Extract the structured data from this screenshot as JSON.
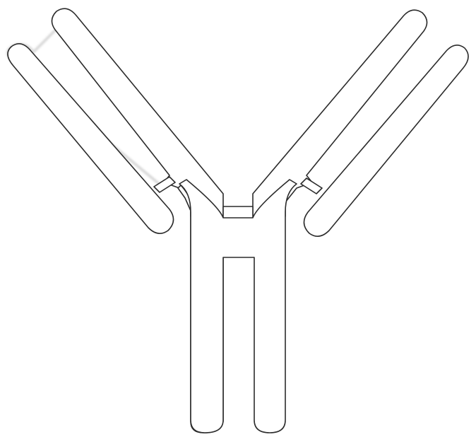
{
  "diagram": {
    "subject_icon": "antibody-icon",
    "stroke_color": "#2b2b2b",
    "background_color": "#ffffff"
  }
}
